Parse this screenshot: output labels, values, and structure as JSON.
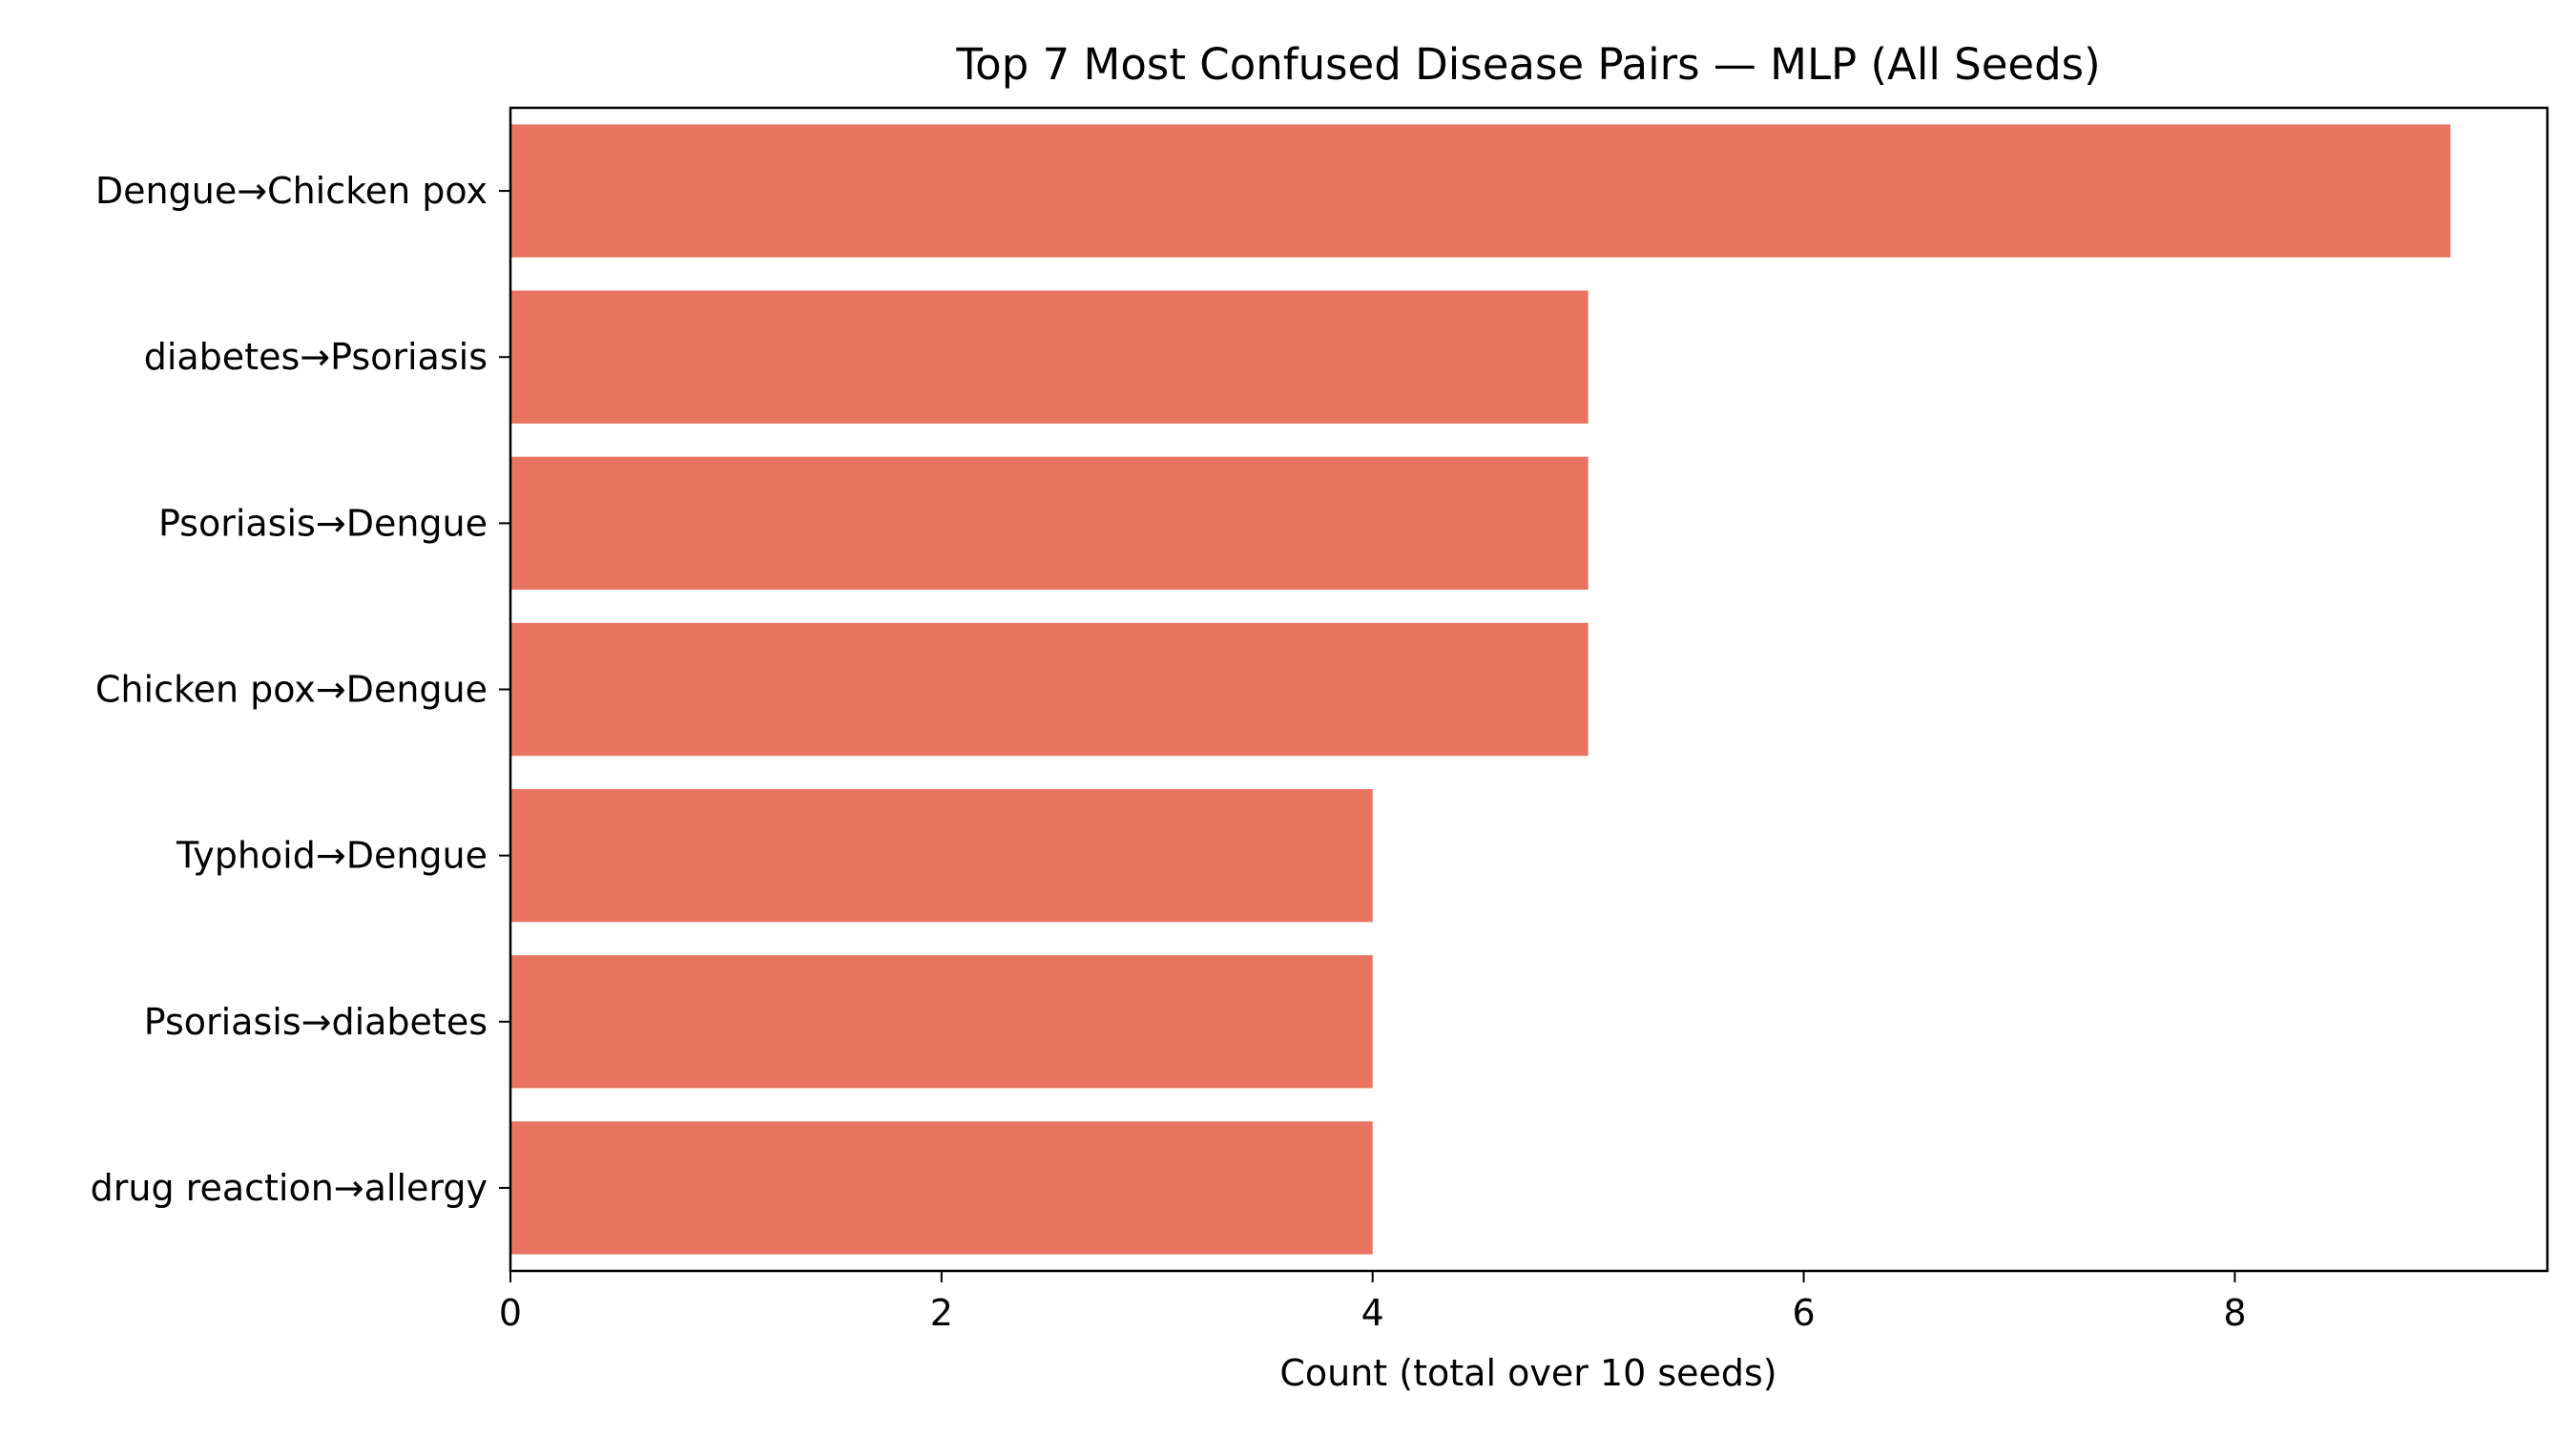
{
  "chart_data": {
    "type": "bar",
    "orientation": "horizontal",
    "title": "Top 7 Most Confused Disease Pairs — MLP (All Seeds)",
    "xlabel": "Count (total over 10 seeds)",
    "ylabel": "",
    "categories": [
      "Dengue→Chicken pox",
      "diabetes→Psoriasis",
      "Psoriasis→Dengue",
      "Chicken pox→Dengue",
      "Typhoid→Dengue",
      "Psoriasis→diabetes",
      "drug reaction→allergy"
    ],
    "values": [
      9,
      5,
      5,
      5,
      4,
      4,
      4
    ],
    "xlim": [
      0,
      9.45
    ],
    "xticks": [
      0,
      2,
      4,
      6,
      8
    ],
    "bar_color": "#e87461",
    "grid": false,
    "legend": "none"
  }
}
